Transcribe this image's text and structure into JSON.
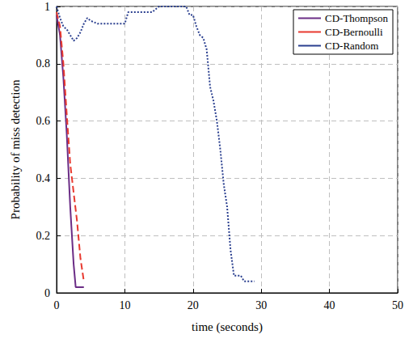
{
  "chart_data": {
    "type": "line",
    "x_label": "time (seconds)",
    "y_label": "Probability of miss detection",
    "xlim": [
      0,
      50
    ],
    "xticks": [
      0,
      10,
      20,
      30,
      40,
      50
    ],
    "ylim": [
      0,
      1
    ],
    "yticks": [
      0,
      0.2,
      0.4,
      0.6,
      0.8,
      1
    ],
    "grid": true,
    "legend": "upper right",
    "series": [
      {
        "name": "CD-Thompson",
        "color": "#6b2d86",
        "line_style": "solid",
        "x": [
          0,
          0.5,
          1,
          1.5,
          2,
          2.5,
          2.8,
          4
        ],
        "values": [
          0.97,
          0.9,
          0.75,
          0.55,
          0.3,
          0.1,
          0.02,
          0.02
        ]
      },
      {
        "name": "CD-Bernoulli",
        "color": "#e8392f",
        "line_style": "dashed",
        "x": [
          0,
          0.5,
          1,
          1.5,
          2,
          2.5,
          3,
          3.5,
          4
        ],
        "values": [
          0.98,
          0.93,
          0.8,
          0.62,
          0.45,
          0.35,
          0.25,
          0.12,
          0.04
        ]
      },
      {
        "name": "CD-Random",
        "color": "#2a3f8f",
        "line_style": "dotted",
        "x": [
          0,
          0.5,
          1,
          1.5,
          2,
          2.5,
          3,
          3.5,
          4,
          4.5,
          5,
          6,
          9,
          10,
          10.5,
          13,
          14,
          15,
          19,
          19.5,
          20,
          20.5,
          21,
          21.5,
          22,
          22.5,
          23,
          23.5,
          24,
          24.5,
          25,
          25.5,
          26,
          27,
          27.5,
          29
        ],
        "values": [
          1,
          0.96,
          0.93,
          0.92,
          0.9,
          0.88,
          0.89,
          0.91,
          0.94,
          0.96,
          0.95,
          0.94,
          0.94,
          0.94,
          0.98,
          0.98,
          0.98,
          1,
          1,
          0.97,
          0.97,
          0.93,
          0.9,
          0.89,
          0.85,
          0.72,
          0.67,
          0.6,
          0.5,
          0.38,
          0.3,
          0.15,
          0.06,
          0.06,
          0.04,
          0.04
        ]
      }
    ]
  }
}
